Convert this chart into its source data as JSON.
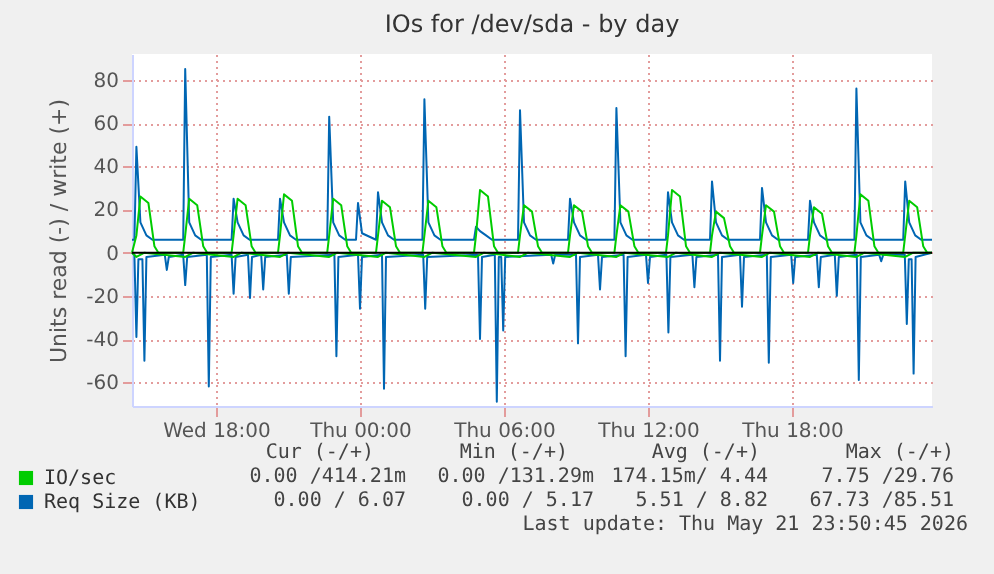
{
  "chart_data": {
    "type": "line",
    "title": "IOs for /dev/sda - by day",
    "ylabel": "Units read (-) / write (+)",
    "xlim": [
      "2026-05-20T14:30",
      "2026-05-21T23:50"
    ],
    "xticks": [
      {
        "value": "2026-05-20T18:00",
        "label": "Wed 18:00"
      },
      {
        "value": "2026-05-21T00:00",
        "label": "Thu 00:00"
      },
      {
        "value": "2026-05-21T06:00",
        "label": "Thu 06:00"
      },
      {
        "value": "2026-05-21T12:00",
        "label": "Thu 12:00"
      },
      {
        "value": "2026-05-21T18:00",
        "label": "Thu 18:00"
      }
    ],
    "ylim": [
      -71,
      92
    ],
    "yticks": [
      -60,
      -40,
      -20,
      0,
      20,
      40,
      60,
      80
    ],
    "grid": true,
    "legend": "bottom left",
    "ref_lines": [
      {
        "axis": "y",
        "value": 0,
        "color": "#000000"
      }
    ],
    "annotations": [
      "Cur (-/+)",
      "Min (-/+)",
      "Avg (-/+)",
      "Max (-/+)",
      "0.00 /414.21m",
      "0.00 /131.29m",
      "174.15m/ 4.44",
      "7.75 /29.76",
      "0.00 / 6.07",
      "0.00 / 5.17",
      "5.51 / 8.82",
      "67.73 /85.51",
      "Last update: Thu May 21 23:50:45 2026"
    ],
    "series": [
      {
        "color": "#0066b3",
        "x": [
          "2026-05-20T14:30",
          "2026-05-20T14:36",
          "2026-05-20T14:41",
          "2026-05-20T14:46",
          "2026-05-20T14:56",
          "2026-05-20T15:01",
          "2026-05-20T15:06",
          "2026-05-20T15:52",
          "2026-05-20T15:57",
          "2026-05-20T16:02",
          "2026-05-20T16:38",
          "2026-05-20T16:43",
          "2026-05-20T16:48",
          "2026-05-20T17:37",
          "2026-05-20T17:42",
          "2026-05-20T17:47",
          "2026-05-20T18:39",
          "2026-05-20T18:44",
          "2026-05-20T18:49",
          "2026-05-20T19:20",
          "2026-05-20T19:25",
          "2026-05-20T19:30",
          "2026-05-20T19:53",
          "2026-05-20T19:58",
          "2026-05-20T20:03",
          "2026-05-20T20:57",
          "2026-05-20T21:02",
          "2026-05-20T21:07",
          "2026-05-20T22:56",
          "2026-05-20T23:01",
          "2026-05-20T23:06",
          "2026-05-20T23:55",
          "2026-05-21T00:00",
          "2026-05-21T00:05",
          "2026-05-21T00:55",
          "2026-05-21T01:00",
          "2026-05-21T01:05",
          "2026-05-21T02:38",
          "2026-05-21T02:43",
          "2026-05-21T02:48",
          "2026-05-21T04:55",
          "2026-05-21T05:00",
          "2026-05-21T05:05",
          "2026-05-21T05:37",
          "2026-05-21T05:42",
          "2026-05-21T05:47",
          "2026-05-21T05:53",
          "2026-05-21T05:58",
          "2026-05-21T06:03",
          "2026-05-21T07:58",
          "2026-05-21T08:03",
          "2026-05-21T08:08",
          "2026-05-21T09:00",
          "2026-05-21T09:05",
          "2026-05-21T09:10",
          "2026-05-21T09:55",
          "2026-05-21T10:00",
          "2026-05-21T10:05",
          "2026-05-21T10:59",
          "2026-05-21T11:04",
          "2026-05-21T11:09",
          "2026-05-21T11:55",
          "2026-05-21T12:00",
          "2026-05-21T12:05",
          "2026-05-21T12:46",
          "2026-05-21T12:51",
          "2026-05-21T12:56",
          "2026-05-21T13:51",
          "2026-05-21T13:56",
          "2026-05-21T14:01",
          "2026-05-21T14:55",
          "2026-05-21T15:00",
          "2026-05-21T15:05",
          "2026-05-21T15:50",
          "2026-05-21T15:55",
          "2026-05-21T16:00",
          "2026-05-21T16:57",
          "2026-05-21T17:02",
          "2026-05-21T17:07",
          "2026-05-21T17:58",
          "2026-05-21T18:03",
          "2026-05-21T18:08",
          "2026-05-21T19:02",
          "2026-05-21T19:07",
          "2026-05-21T19:12",
          "2026-05-21T19:47",
          "2026-05-21T19:52",
          "2026-05-21T19:57",
          "2026-05-21T20:42",
          "2026-05-21T20:47",
          "2026-05-21T20:52",
          "2026-05-21T21:38",
          "2026-05-21T21:43",
          "2026-05-21T21:48",
          "2026-05-21T22:42",
          "2026-05-21T22:47",
          "2026-05-21T22:52",
          "2026-05-21T22:59",
          "2026-05-21T23:04",
          "2026-05-21T23:09",
          "2026-05-21T23:50"
        ],
        "values": [
          0,
          -1,
          -39,
          -3,
          -3,
          -50,
          -2,
          -1,
          -8,
          -2,
          -1,
          -15,
          -2,
          -1,
          -62,
          -2,
          -1,
          -19,
          -2,
          -1,
          -21,
          -2,
          -1,
          -17,
          -2,
          -1,
          -19,
          -2,
          -1,
          -48,
          -2,
          -1,
          -26,
          -2,
          -1,
          -63,
          -2,
          -1,
          -26,
          -2,
          -1,
          -40,
          -2,
          -1,
          -69,
          -2,
          -2,
          -36,
          -2,
          -1,
          -5,
          -1,
          -1,
          -42,
          -2,
          -1,
          -17,
          -2,
          -1,
          -48,
          -2,
          -1,
          -14,
          -2,
          -1,
          -37,
          -2,
          -1,
          -16,
          -2,
          -1,
          -50,
          -2,
          -1,
          -25,
          -2,
          -1,
          -51,
          -2,
          -1,
          -14,
          -2,
          -1,
          -16,
          -2,
          -1,
          -20,
          -2,
          -1,
          -59,
          -2,
          -1,
          -4,
          -1,
          -1,
          -33,
          -3,
          -3,
          -56,
          -2,
          0
        ]
      },
      {
        "name": "IO/sec",
        "color": "#00cc00",
        "x": [
          "2026-05-20T14:30",
          "2026-05-20T14:41",
          "2026-05-20T15:01",
          "2026-05-20T16:43",
          "2026-05-20T17:03",
          "2026-05-20T18:44",
          "2026-05-20T19:04",
          "2026-05-20T20:40",
          "2026-05-20T21:00",
          "2026-05-20T22:43",
          "2026-05-20T23:03",
          "2026-05-21T00:45",
          "2026-05-21T01:05",
          "2026-05-21T02:41",
          "2026-05-21T03:01",
          "2026-05-21T04:50",
          "2026-05-21T05:10",
          "2026-05-21T06:40",
          "2026-05-21T07:00",
          "2026-05-21T08:45",
          "2026-05-21T09:05",
          "2026-05-21T10:41",
          "2026-05-21T11:01",
          "2026-05-21T12:50",
          "2026-05-21T13:10",
          "2026-05-21T14:40",
          "2026-05-21T15:00",
          "2026-05-21T16:45",
          "2026-05-21T17:05",
          "2026-05-21T18:45",
          "2026-05-21T19:05",
          "2026-05-21T20:41",
          "2026-05-21T21:01",
          "2026-05-21T22:43",
          "2026-05-21T23:03",
          "2026-05-21T23:50"
        ],
        "values": [
          0,
          -2,
          0,
          -2,
          0,
          -2,
          0,
          -2,
          0,
          -2,
          0,
          -2,
          0,
          -2,
          0,
          -2,
          0,
          -2,
          0,
          -2,
          0,
          -2,
          0,
          -2,
          0,
          -2,
          0,
          -2,
          0,
          -2,
          0,
          -2,
          0,
          -2,
          0,
          0
        ]
      },
      {
        "name": "Req Size (KB)",
        "color": "#0066b3",
        "x": [
          "2026-05-20T14:30",
          "2026-05-20T14:36",
          "2026-05-20T14:41",
          "2026-05-20T14:51",
          "2026-05-20T15:06",
          "2026-05-20T15:21",
          "2026-05-20T16:38",
          "2026-05-20T16:43",
          "2026-05-20T16:53",
          "2026-05-20T17:08",
          "2026-05-20T17:23",
          "2026-05-20T18:39",
          "2026-05-20T18:44",
          "2026-05-20T18:54",
          "2026-05-20T19:09",
          "2026-05-20T19:24",
          "2026-05-20T20:35",
          "2026-05-20T20:40",
          "2026-05-20T20:50",
          "2026-05-20T21:05",
          "2026-05-20T21:20",
          "2026-05-20T22:38",
          "2026-05-20T22:43",
          "2026-05-20T22:53",
          "2026-05-20T23:08",
          "2026-05-20T23:23",
          "2026-05-20T23:50",
          "2026-05-20T23:55",
          "2026-05-21T00:05",
          "2026-05-21T00:40",
          "2026-05-21T00:45",
          "2026-05-21T00:55",
          "2026-05-21T01:10",
          "2026-05-21T01:25",
          "2026-05-21T02:36",
          "2026-05-21T02:41",
          "2026-05-21T02:51",
          "2026-05-21T03:06",
          "2026-05-21T03:21",
          "2026-05-21T04:45",
          "2026-05-21T04:50",
          "2026-05-21T05:00",
          "2026-05-21T05:15",
          "2026-05-21T05:30",
          "2026-05-21T06:35",
          "2026-05-21T06:40",
          "2026-05-21T06:50",
          "2026-05-21T07:05",
          "2026-05-21T07:20",
          "2026-05-21T08:40",
          "2026-05-21T08:45",
          "2026-05-21T08:55",
          "2026-05-21T09:10",
          "2026-05-21T09:25",
          "2026-05-21T10:36",
          "2026-05-21T10:41",
          "2026-05-21T10:51",
          "2026-05-21T11:06",
          "2026-05-21T11:21",
          "2026-05-21T12:45",
          "2026-05-21T12:50",
          "2026-05-21T13:00",
          "2026-05-21T13:15",
          "2026-05-21T13:30",
          "2026-05-21T14:35",
          "2026-05-21T14:40",
          "2026-05-21T14:50",
          "2026-05-21T15:05",
          "2026-05-21T15:20",
          "2026-05-21T16:40",
          "2026-05-21T16:45",
          "2026-05-21T16:55",
          "2026-05-21T17:10",
          "2026-05-21T17:25",
          "2026-05-21T18:40",
          "2026-05-21T18:45",
          "2026-05-21T18:55",
          "2026-05-21T19:10",
          "2026-05-21T19:25",
          "2026-05-21T20:36",
          "2026-05-21T20:41",
          "2026-05-21T20:51",
          "2026-05-21T21:06",
          "2026-05-21T21:21",
          "2026-05-21T22:38",
          "2026-05-21T22:43",
          "2026-05-21T22:53",
          "2026-05-21T23:08",
          "2026-05-21T23:23",
          "2026-05-21T23:50"
        ],
        "values": [
          6,
          6,
          49,
          14,
          8,
          6,
          6,
          85,
          14,
          8,
          6,
          6,
          25,
          14,
          8,
          6,
          6,
          25,
          14,
          8,
          6,
          6,
          63,
          14,
          8,
          6,
          6,
          23,
          9,
          6,
          28,
          14,
          8,
          6,
          6,
          71,
          14,
          8,
          6,
          6,
          12,
          10,
          8,
          6,
          6,
          66,
          14,
          8,
          6,
          6,
          25,
          14,
          8,
          6,
          6,
          67,
          14,
          8,
          6,
          6,
          28,
          14,
          8,
          6,
          6,
          33,
          14,
          8,
          6,
          6,
          30,
          14,
          8,
          6,
          6,
          24,
          14,
          8,
          6,
          6,
          76,
          14,
          8,
          6,
          6,
          33,
          14,
          8,
          6,
          6
        ]
      },
      {
        "color": "#00cc00",
        "x": [
          "2026-05-20T14:30",
          "2026-05-20T14:41",
          "2026-05-20T14:51",
          "2026-05-20T15:11",
          "2026-05-20T15:26",
          "2026-05-20T15:36",
          "2026-05-20T16:38",
          "2026-05-20T16:43",
          "2026-05-20T16:53",
          "2026-05-20T17:13",
          "2026-05-20T17:28",
          "2026-05-20T17:38",
          "2026-05-20T18:39",
          "2026-05-20T18:44",
          "2026-05-20T18:54",
          "2026-05-20T19:14",
          "2026-05-20T19:29",
          "2026-05-20T19:39",
          "2026-05-20T20:35",
          "2026-05-20T20:40",
          "2026-05-20T20:50",
          "2026-05-20T21:10",
          "2026-05-20T21:25",
          "2026-05-20T21:35",
          "2026-05-20T22:38",
          "2026-05-20T22:43",
          "2026-05-20T22:53",
          "2026-05-20T23:13",
          "2026-05-20T23:28",
          "2026-05-20T23:38",
          "2026-05-21T00:40",
          "2026-05-21T00:45",
          "2026-05-21T00:55",
          "2026-05-21T01:15",
          "2026-05-21T01:30",
          "2026-05-21T01:40",
          "2026-05-21T02:36",
          "2026-05-21T02:41",
          "2026-05-21T02:51",
          "2026-05-21T03:11",
          "2026-05-21T03:26",
          "2026-05-21T03:36",
          "2026-05-21T04:45",
          "2026-05-21T04:50",
          "2026-05-21T05:00",
          "2026-05-21T05:20",
          "2026-05-21T05:35",
          "2026-05-21T05:45",
          "2026-05-21T06:35",
          "2026-05-21T06:40",
          "2026-05-21T06:50",
          "2026-05-21T07:10",
          "2026-05-21T07:25",
          "2026-05-21T07:35",
          "2026-05-21T08:40",
          "2026-05-21T08:45",
          "2026-05-21T08:55",
          "2026-05-21T09:15",
          "2026-05-21T09:30",
          "2026-05-21T09:40",
          "2026-05-21T10:36",
          "2026-05-21T10:41",
          "2026-05-21T10:51",
          "2026-05-21T11:11",
          "2026-05-21T11:26",
          "2026-05-21T11:36",
          "2026-05-21T12:45",
          "2026-05-21T12:50",
          "2026-05-21T13:00",
          "2026-05-21T13:20",
          "2026-05-21T13:35",
          "2026-05-21T13:45",
          "2026-05-21T14:35",
          "2026-05-21T14:40",
          "2026-05-21T14:50",
          "2026-05-21T15:10",
          "2026-05-21T15:25",
          "2026-05-21T15:35",
          "2026-05-21T16:40",
          "2026-05-21T16:45",
          "2026-05-21T16:55",
          "2026-05-21T17:15",
          "2026-05-21T17:30",
          "2026-05-21T17:40",
          "2026-05-21T18:40",
          "2026-05-21T18:45",
          "2026-05-21T18:55",
          "2026-05-21T19:15",
          "2026-05-21T19:30",
          "2026-05-21T19:40",
          "2026-05-21T20:36",
          "2026-05-21T20:41",
          "2026-05-21T20:51",
          "2026-05-21T21:11",
          "2026-05-21T21:26",
          "2026-05-21T21:36",
          "2026-05-21T22:38",
          "2026-05-21T22:43",
          "2026-05-21T22:53",
          "2026-05-21T23:13",
          "2026-05-21T23:28",
          "2026-05-21T23:38",
          "2026-05-21T23:50"
        ],
        "values": [
          0,
          8,
          26,
          23,
          3,
          0,
          0,
          8,
          25,
          22,
          3,
          0,
          0,
          8,
          25,
          22,
          3,
          0,
          0,
          8,
          27,
          24,
          3,
          0,
          0,
          8,
          25,
          22,
          3,
          0,
          0,
          8,
          24,
          21,
          3,
          0,
          0,
          8,
          24,
          21,
          3,
          0,
          0,
          8,
          29,
          26,
          3,
          0,
          0,
          8,
          22,
          19,
          3,
          0,
          0,
          8,
          22,
          19,
          3,
          0,
          0,
          8,
          22,
          19,
          3,
          0,
          0,
          8,
          29,
          26,
          3,
          0,
          0,
          8,
          19,
          16,
          3,
          0,
          0,
          8,
          22,
          19,
          3,
          0,
          0,
          8,
          21,
          18,
          3,
          0,
          0,
          8,
          27,
          24,
          3,
          0,
          0,
          8,
          24,
          21,
          3,
          0,
          0
        ]
      }
    ]
  }
}
